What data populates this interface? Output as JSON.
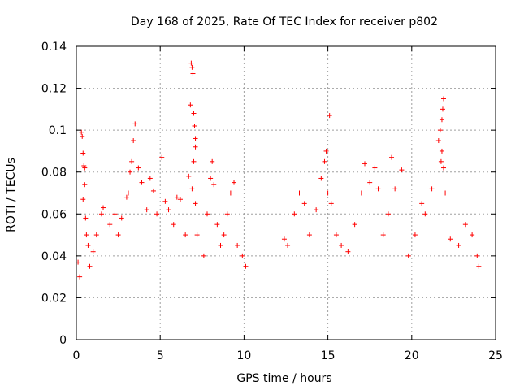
{
  "chart_data": {
    "type": "scatter",
    "title": "Day 168 of 2025, Rate Of TEC Index for receiver p802",
    "xlabel": "GPS time / hours",
    "ylabel": "ROTI / TECUs",
    "xlim": [
      0,
      25
    ],
    "ylim": [
      0,
      0.14
    ],
    "xticks": [
      0,
      5,
      10,
      15,
      20,
      25
    ],
    "yticks": [
      0,
      0.02,
      0.04,
      0.06,
      0.08,
      0.1,
      0.12,
      0.14
    ],
    "xtick_labels": [
      "0",
      "5",
      "10",
      "15",
      "20",
      "25"
    ],
    "ytick_labels": [
      "0",
      "0.02",
      "0.04",
      "0.06",
      "0.08",
      "0.1",
      "0.12",
      "0.14"
    ],
    "grid": true,
    "marker": "plus",
    "color": "#ff0000",
    "series": [
      {
        "points": [
          [
            0.1,
            0.037
          ],
          [
            0.2,
            0.03
          ],
          [
            0.3,
            0.099
          ],
          [
            0.35,
            0.097
          ],
          [
            0.4,
            0.089
          ],
          [
            0.45,
            0.083
          ],
          [
            0.5,
            0.082
          ],
          [
            0.5,
            0.074
          ],
          [
            0.4,
            0.067
          ],
          [
            0.55,
            0.058
          ],
          [
            0.6,
            0.05
          ],
          [
            0.7,
            0.045
          ],
          [
            0.8,
            0.035
          ],
          [
            1.0,
            0.042
          ],
          [
            1.2,
            0.05
          ],
          [
            1.5,
            0.06
          ],
          [
            1.6,
            0.063
          ],
          [
            2.0,
            0.055
          ],
          [
            2.3,
            0.06
          ],
          [
            2.5,
            0.05
          ],
          [
            2.7,
            0.058
          ],
          [
            3.0,
            0.068
          ],
          [
            3.1,
            0.07
          ],
          [
            3.2,
            0.08
          ],
          [
            3.3,
            0.085
          ],
          [
            3.4,
            0.095
          ],
          [
            3.5,
            0.103
          ],
          [
            3.7,
            0.082
          ],
          [
            3.9,
            0.075
          ],
          [
            4.2,
            0.062
          ],
          [
            4.4,
            0.077
          ],
          [
            4.6,
            0.071
          ],
          [
            4.8,
            0.06
          ],
          [
            5.1,
            0.087
          ],
          [
            5.3,
            0.066
          ],
          [
            5.5,
            0.062
          ],
          [
            5.8,
            0.055
          ],
          [
            6.0,
            0.068
          ],
          [
            6.2,
            0.067
          ],
          [
            6.5,
            0.05
          ],
          [
            6.7,
            0.078
          ],
          [
            6.8,
            0.112
          ],
          [
            6.85,
            0.132
          ],
          [
            6.9,
            0.13
          ],
          [
            6.95,
            0.127
          ],
          [
            7.0,
            0.108
          ],
          [
            7.05,
            0.102
          ],
          [
            7.1,
            0.096
          ],
          [
            7.1,
            0.092
          ],
          [
            7.0,
            0.085
          ],
          [
            6.9,
            0.072
          ],
          [
            7.1,
            0.065
          ],
          [
            7.2,
            0.05
          ],
          [
            7.6,
            0.04
          ],
          [
            7.8,
            0.06
          ],
          [
            8.0,
            0.077
          ],
          [
            8.1,
            0.085
          ],
          [
            8.2,
            0.074
          ],
          [
            8.4,
            0.055
          ],
          [
            8.6,
            0.045
          ],
          [
            8.8,
            0.05
          ],
          [
            9.0,
            0.06
          ],
          [
            9.2,
            0.07
          ],
          [
            9.4,
            0.075
          ],
          [
            9.6,
            0.045
          ],
          [
            9.9,
            0.04
          ],
          [
            10.1,
            0.035
          ],
          [
            12.4,
            0.048
          ],
          [
            12.6,
            0.045
          ],
          [
            13.0,
            0.06
          ],
          [
            13.3,
            0.07
          ],
          [
            13.6,
            0.065
          ],
          [
            13.9,
            0.05
          ],
          [
            14.3,
            0.062
          ],
          [
            14.6,
            0.077
          ],
          [
            14.8,
            0.085
          ],
          [
            14.9,
            0.09
          ],
          [
            15.0,
            0.07
          ],
          [
            15.1,
            0.107
          ],
          [
            15.2,
            0.065
          ],
          [
            15.5,
            0.05
          ],
          [
            15.8,
            0.045
          ],
          [
            16.2,
            0.042
          ],
          [
            16.6,
            0.055
          ],
          [
            17.0,
            0.07
          ],
          [
            17.2,
            0.084
          ],
          [
            17.5,
            0.075
          ],
          [
            17.8,
            0.082
          ],
          [
            18.0,
            0.072
          ],
          [
            18.3,
            0.05
          ],
          [
            18.6,
            0.06
          ],
          [
            18.8,
            0.087
          ],
          [
            19.0,
            0.072
          ],
          [
            19.4,
            0.081
          ],
          [
            19.8,
            0.04
          ],
          [
            20.2,
            0.05
          ],
          [
            20.6,
            0.065
          ],
          [
            20.8,
            0.06
          ],
          [
            21.2,
            0.072
          ],
          [
            21.6,
            0.095
          ],
          [
            21.7,
            0.1
          ],
          [
            21.8,
            0.105
          ],
          [
            21.85,
            0.11
          ],
          [
            21.9,
            0.115
          ],
          [
            21.8,
            0.09
          ],
          [
            21.75,
            0.085
          ],
          [
            21.9,
            0.082
          ],
          [
            22.0,
            0.07
          ],
          [
            22.3,
            0.048
          ],
          [
            22.8,
            0.045
          ],
          [
            23.2,
            0.055
          ],
          [
            23.6,
            0.05
          ],
          [
            23.9,
            0.04
          ],
          [
            24.0,
            0.035
          ]
        ]
      }
    ]
  }
}
